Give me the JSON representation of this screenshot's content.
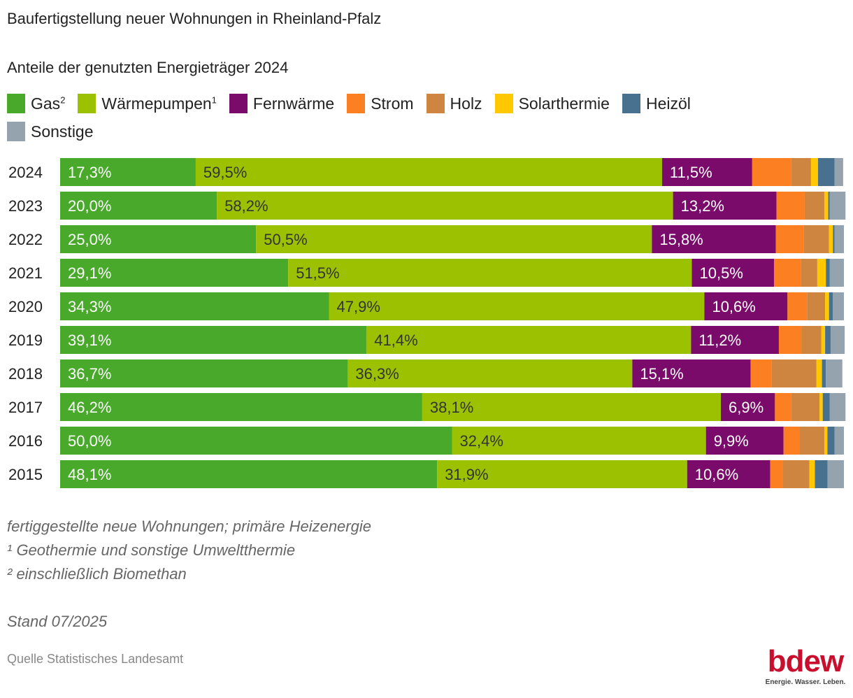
{
  "header": {
    "title": "Baufertigstellung neuer Wohnungen in Rheinland-Pfalz",
    "subtitle": "Anteile der genutzten Energieträger 2024"
  },
  "legend": [
    {
      "name": "Gas",
      "sup": "2",
      "color": "#48a92a"
    },
    {
      "name": "Wärmepumpen",
      "sup": "1",
      "color": "#9bc100"
    },
    {
      "name": "Fernwärme",
      "sup": "",
      "color": "#7a0b6a"
    },
    {
      "name": "Strom",
      "sup": "",
      "color": "#fc8022"
    },
    {
      "name": "Holz",
      "sup": "",
      "color": "#cd8540"
    },
    {
      "name": "Solarthermie",
      "sup": "",
      "color": "#ffc800"
    },
    {
      "name": "Heizöl",
      "sup": "",
      "color": "#47718f"
    },
    {
      "name": "Sonstige",
      "sup": "",
      "color": "#94a3ad"
    }
  ],
  "chart_data": {
    "type": "bar",
    "orientation": "horizontal",
    "stacked": true,
    "title": "Baufertigstellung neuer Wohnungen in Rheinland-Pfalz",
    "subtitle": "Anteile der genutzten Energieträger 2024",
    "xlabel": "",
    "ylabel": "",
    "xlim": [
      0,
      100
    ],
    "unit": "%",
    "grid": false,
    "legend_position": "top",
    "categories": [
      "2024",
      "2023",
      "2022",
      "2021",
      "2020",
      "2019",
      "2018",
      "2017",
      "2016",
      "2015"
    ],
    "series": [
      {
        "name": "Gas²",
        "values": [
          17.3,
          20.0,
          25.0,
          29.1,
          34.3,
          39.1,
          36.7,
          46.2,
          50.0,
          48.1
        ],
        "labeled": true,
        "label_color": "#ffffff"
      },
      {
        "name": "Wärmepumpen¹",
        "values": [
          59.5,
          58.2,
          50.5,
          51.5,
          47.9,
          41.4,
          36.3,
          38.1,
          32.4,
          31.9
        ],
        "labeled": true,
        "label_color": "#333333"
      },
      {
        "name": "Fernwärme",
        "values": [
          11.5,
          13.2,
          15.8,
          10.5,
          10.6,
          11.2,
          15.1,
          6.9,
          9.9,
          10.6
        ],
        "labeled": true,
        "label_color": "#ffffff"
      },
      {
        "name": "Strom",
        "values": [
          5.0,
          3.6,
          3.6,
          3.4,
          2.5,
          2.9,
          2.7,
          2.1,
          2.0,
          1.6
        ],
        "labeled": false
      },
      {
        "name": "Holz",
        "values": [
          2.5,
          2.5,
          3.2,
          2.1,
          2.3,
          2.5,
          5.7,
          3.6,
          3.2,
          3.4
        ],
        "labeled": false
      },
      {
        "name": "Solarthermie",
        "values": [
          0.9,
          0.5,
          0.5,
          1.1,
          0.5,
          0.5,
          0.7,
          0.4,
          0.4,
          0.7
        ],
        "labeled": false
      },
      {
        "name": "Heizöl",
        "values": [
          2.1,
          0.2,
          0.2,
          0.5,
          0.5,
          0.7,
          0.5,
          0.9,
          0.9,
          1.6
        ],
        "labeled": false
      },
      {
        "name": "Sonstige",
        "values": [
          1.1,
          2.0,
          1.2,
          1.8,
          1.4,
          1.8,
          2.1,
          2.0,
          1.2,
          2.1
        ],
        "labeled": false
      }
    ],
    "decimal_separator": ","
  },
  "footnotes": {
    "note": "fertiggestellte neue Wohnungen; primäre Heizenergie",
    "fn1": "¹ Geothermie und sonstige Umweltthermie",
    "fn2": "² einschließlich Biomethan",
    "stand": "Stand 07/2025"
  },
  "source": "Quelle Statistisches Landesamt",
  "logo": {
    "word": "bdew",
    "tagline": "Energie. Wasser. Leben."
  }
}
